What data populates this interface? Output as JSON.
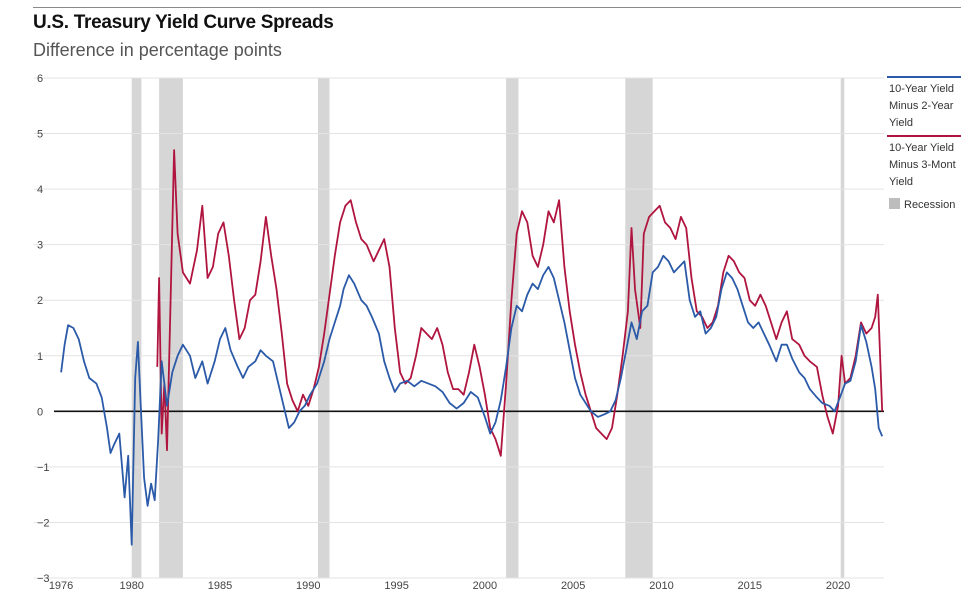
{
  "title": "U.S. Treasury Yield Curve Spreads",
  "subtitle": "Difference in percentage points",
  "legend": {
    "series1": [
      "10-Year Yield",
      "Minus 2-Year",
      "Yield"
    ],
    "series2": [
      "10-Year Yield",
      "Minus 3-Mont",
      "Yield"
    ],
    "recession": "Recession"
  },
  "colors": {
    "series1": "#2b5aa8",
    "series2": "#b0153f",
    "recession": "#d6d6d6",
    "grid": "#e3e3e3",
    "zero_line": "#111111"
  },
  "chart_data": {
    "type": "line",
    "title": "U.S. Treasury Yield Curve Spreads",
    "subtitle": "Difference in percentage points",
    "xlim": [
      1975.6,
      2022.6
    ],
    "ylim": [
      -3,
      6
    ],
    "x_ticks": [
      1976,
      1980,
      1985,
      1990,
      1995,
      2000,
      2005,
      2010,
      2015,
      2020
    ],
    "y_ticks": [
      6,
      5,
      4,
      3,
      2,
      1,
      0,
      -1,
      -2,
      -3
    ],
    "grid": "horizontal",
    "legend_position": "right",
    "recessions": [
      [
        1980.0,
        1980.55
      ],
      [
        1981.55,
        1982.9
      ],
      [
        1990.55,
        1991.2
      ],
      [
        2001.2,
        2001.9
      ],
      [
        2007.95,
        2009.5
      ],
      [
        2020.15,
        2020.35
      ]
    ],
    "series": [
      {
        "name": "10-Year Yield Minus 2-Year Yield",
        "points": [
          [
            1976.0,
            0.7
          ],
          [
            1976.2,
            1.2
          ],
          [
            1976.4,
            1.55
          ],
          [
            1976.7,
            1.5
          ],
          [
            1977.0,
            1.3
          ],
          [
            1977.3,
            0.9
          ],
          [
            1977.6,
            0.6
          ],
          [
            1978.0,
            0.5
          ],
          [
            1978.3,
            0.25
          ],
          [
            1978.6,
            -0.3
          ],
          [
            1978.8,
            -0.75
          ],
          [
            1979.0,
            -0.6
          ],
          [
            1979.3,
            -0.4
          ],
          [
            1979.6,
            -1.55
          ],
          [
            1979.8,
            -0.8
          ],
          [
            1980.0,
            -2.4
          ],
          [
            1980.2,
            0.6
          ],
          [
            1980.35,
            1.25
          ],
          [
            1980.5,
            0.2
          ],
          [
            1980.7,
            -1.2
          ],
          [
            1980.9,
            -1.7
          ],
          [
            1981.1,
            -1.3
          ],
          [
            1981.3,
            -1.6
          ],
          [
            1981.5,
            -0.5
          ],
          [
            1981.7,
            0.9
          ],
          [
            1982.0,
            0.1
          ],
          [
            1982.3,
            0.7
          ],
          [
            1982.6,
            1.0
          ],
          [
            1982.9,
            1.2
          ],
          [
            1983.3,
            1.0
          ],
          [
            1983.6,
            0.6
          ],
          [
            1984.0,
            0.9
          ],
          [
            1984.3,
            0.5
          ],
          [
            1984.7,
            0.9
          ],
          [
            1985.0,
            1.3
          ],
          [
            1985.3,
            1.5
          ],
          [
            1985.6,
            1.1
          ],
          [
            1986.0,
            0.8
          ],
          [
            1986.3,
            0.6
          ],
          [
            1986.6,
            0.8
          ],
          [
            1987.0,
            0.9
          ],
          [
            1987.3,
            1.1
          ],
          [
            1987.6,
            1.0
          ],
          [
            1988.0,
            0.9
          ],
          [
            1988.3,
            0.5
          ],
          [
            1988.6,
            0.1
          ],
          [
            1988.9,
            -0.3
          ],
          [
            1989.2,
            -0.2
          ],
          [
            1989.5,
            0.0
          ],
          [
            1989.8,
            0.1
          ],
          [
            1990.1,
            0.3
          ],
          [
            1990.5,
            0.5
          ],
          [
            1990.9,
            0.9
          ],
          [
            1991.2,
            1.3
          ],
          [
            1991.5,
            1.6
          ],
          [
            1991.8,
            1.9
          ],
          [
            1992.0,
            2.2
          ],
          [
            1992.3,
            2.45
          ],
          [
            1992.6,
            2.3
          ],
          [
            1993.0,
            2.0
          ],
          [
            1993.3,
            1.9
          ],
          [
            1993.6,
            1.7
          ],
          [
            1994.0,
            1.4
          ],
          [
            1994.3,
            0.9
          ],
          [
            1994.6,
            0.6
          ],
          [
            1994.9,
            0.35
          ],
          [
            1995.2,
            0.5
          ],
          [
            1995.6,
            0.55
          ],
          [
            1996.0,
            0.45
          ],
          [
            1996.4,
            0.55
          ],
          [
            1996.8,
            0.5
          ],
          [
            1997.2,
            0.45
          ],
          [
            1997.6,
            0.35
          ],
          [
            1998.0,
            0.15
          ],
          [
            1998.4,
            0.05
          ],
          [
            1998.8,
            0.15
          ],
          [
            1999.2,
            0.35
          ],
          [
            1999.6,
            0.25
          ],
          [
            2000.0,
            -0.1
          ],
          [
            2000.3,
            -0.4
          ],
          [
            2000.6,
            -0.2
          ],
          [
            2000.9,
            0.2
          ],
          [
            2001.2,
            0.8
          ],
          [
            2001.5,
            1.5
          ],
          [
            2001.8,
            1.9
          ],
          [
            2002.1,
            1.8
          ],
          [
            2002.4,
            2.1
          ],
          [
            2002.7,
            2.3
          ],
          [
            2003.0,
            2.2
          ],
          [
            2003.3,
            2.45
          ],
          [
            2003.6,
            2.6
          ],
          [
            2003.9,
            2.4
          ],
          [
            2004.2,
            2.0
          ],
          [
            2004.5,
            1.6
          ],
          [
            2004.8,
            1.1
          ],
          [
            2005.1,
            0.6
          ],
          [
            2005.4,
            0.3
          ],
          [
            2005.7,
            0.15
          ],
          [
            2006.0,
            0.0
          ],
          [
            2006.4,
            -0.1
          ],
          [
            2006.8,
            -0.05
          ],
          [
            2007.1,
            0.0
          ],
          [
            2007.4,
            0.2
          ],
          [
            2007.7,
            0.6
          ],
          [
            2008.0,
            1.1
          ],
          [
            2008.3,
            1.6
          ],
          [
            2008.6,
            1.3
          ],
          [
            2008.9,
            1.8
          ],
          [
            2009.2,
            1.9
          ],
          [
            2009.5,
            2.5
          ],
          [
            2009.8,
            2.6
          ],
          [
            2010.1,
            2.8
          ],
          [
            2010.4,
            2.7
          ],
          [
            2010.7,
            2.5
          ],
          [
            2011.0,
            2.6
          ],
          [
            2011.3,
            2.7
          ],
          [
            2011.6,
            2.0
          ],
          [
            2011.9,
            1.7
          ],
          [
            2012.2,
            1.8
          ],
          [
            2012.5,
            1.4
          ],
          [
            2012.8,
            1.5
          ],
          [
            2013.1,
            1.7
          ],
          [
            2013.4,
            2.2
          ],
          [
            2013.7,
            2.5
          ],
          [
            2014.0,
            2.4
          ],
          [
            2014.3,
            2.2
          ],
          [
            2014.6,
            1.9
          ],
          [
            2014.9,
            1.6
          ],
          [
            2015.2,
            1.5
          ],
          [
            2015.5,
            1.6
          ],
          [
            2015.8,
            1.4
          ],
          [
            2016.1,
            1.2
          ],
          [
            2016.5,
            0.9
          ],
          [
            2016.8,
            1.2
          ],
          [
            2017.1,
            1.2
          ],
          [
            2017.4,
            0.95
          ],
          [
            2017.8,
            0.7
          ],
          [
            2018.1,
            0.6
          ],
          [
            2018.4,
            0.4
          ],
          [
            2018.8,
            0.25
          ],
          [
            2019.1,
            0.15
          ],
          [
            2019.5,
            0.1
          ],
          [
            2019.8,
            0.0
          ],
          [
            2020.1,
            0.25
          ],
          [
            2020.4,
            0.5
          ],
          [
            2020.7,
            0.55
          ],
          [
            2021.0,
            0.9
          ],
          [
            2021.3,
            1.55
          ],
          [
            2021.6,
            1.25
          ],
          [
            2021.9,
            0.8
          ],
          [
            2022.1,
            0.4
          ],
          [
            2022.3,
            -0.3
          ],
          [
            2022.5,
            -0.45
          ]
        ]
      },
      {
        "name": "10-Year Yield Minus 3-Month Yield",
        "points": [
          [
            1981.45,
            0.8
          ],
          [
            1981.55,
            2.4
          ],
          [
            1981.7,
            -0.4
          ],
          [
            1981.85,
            0.5
          ],
          [
            1982.0,
            -0.7
          ],
          [
            1982.2,
            2.0
          ],
          [
            1982.4,
            4.7
          ],
          [
            1982.6,
            3.2
          ],
          [
            1982.9,
            2.5
          ],
          [
            1983.3,
            2.3
          ],
          [
            1983.7,
            2.9
          ],
          [
            1984.0,
            3.7
          ],
          [
            1984.3,
            2.4
          ],
          [
            1984.6,
            2.6
          ],
          [
            1984.9,
            3.2
          ],
          [
            1985.2,
            3.4
          ],
          [
            1985.5,
            2.8
          ],
          [
            1985.8,
            2.0
          ],
          [
            1986.1,
            1.3
          ],
          [
            1986.4,
            1.5
          ],
          [
            1986.7,
            2.0
          ],
          [
            1987.0,
            2.1
          ],
          [
            1987.3,
            2.7
          ],
          [
            1987.6,
            3.5
          ],
          [
            1987.9,
            2.8
          ],
          [
            1988.2,
            2.2
          ],
          [
            1988.5,
            1.4
          ],
          [
            1988.8,
            0.5
          ],
          [
            1989.1,
            0.2
          ],
          [
            1989.4,
            0.0
          ],
          [
            1989.7,
            0.3
          ],
          [
            1990.0,
            0.1
          ],
          [
            1990.3,
            0.4
          ],
          [
            1990.6,
            0.8
          ],
          [
            1990.9,
            1.4
          ],
          [
            1991.2,
            2.1
          ],
          [
            1991.5,
            2.8
          ],
          [
            1991.8,
            3.4
          ],
          [
            1992.1,
            3.7
          ],
          [
            1992.4,
            3.8
          ],
          [
            1992.7,
            3.4
          ],
          [
            1993.0,
            3.1
          ],
          [
            1993.3,
            3.0
          ],
          [
            1993.7,
            2.7
          ],
          [
            1994.0,
            2.9
          ],
          [
            1994.3,
            3.1
          ],
          [
            1994.6,
            2.6
          ],
          [
            1994.9,
            1.5
          ],
          [
            1995.2,
            0.7
          ],
          [
            1995.5,
            0.5
          ],
          [
            1995.8,
            0.6
          ],
          [
            1996.1,
            1.0
          ],
          [
            1996.4,
            1.5
          ],
          [
            1996.7,
            1.4
          ],
          [
            1997.0,
            1.3
          ],
          [
            1997.3,
            1.5
          ],
          [
            1997.6,
            1.2
          ],
          [
            1997.9,
            0.7
          ],
          [
            1998.2,
            0.4
          ],
          [
            1998.5,
            0.4
          ],
          [
            1998.8,
            0.3
          ],
          [
            1999.1,
            0.7
          ],
          [
            1999.4,
            1.2
          ],
          [
            1999.7,
            0.8
          ],
          [
            2000.0,
            0.3
          ],
          [
            2000.3,
            -0.3
          ],
          [
            2000.6,
            -0.5
          ],
          [
            2000.9,
            -0.8
          ],
          [
            2001.2,
            0.5
          ],
          [
            2001.5,
            2.0
          ],
          [
            2001.8,
            3.2
          ],
          [
            2002.1,
            3.6
          ],
          [
            2002.4,
            3.4
          ],
          [
            2002.7,
            2.8
          ],
          [
            2003.0,
            2.6
          ],
          [
            2003.3,
            3.0
          ],
          [
            2003.6,
            3.6
          ],
          [
            2003.9,
            3.4
          ],
          [
            2004.2,
            3.8
          ],
          [
            2004.5,
            2.6
          ],
          [
            2004.8,
            1.8
          ],
          [
            2005.1,
            1.2
          ],
          [
            2005.4,
            0.7
          ],
          [
            2005.7,
            0.3
          ],
          [
            2006.0,
            0.0
          ],
          [
            2006.3,
            -0.3
          ],
          [
            2006.6,
            -0.4
          ],
          [
            2006.9,
            -0.5
          ],
          [
            2007.2,
            -0.3
          ],
          [
            2007.5,
            0.3
          ],
          [
            2007.8,
            1.0
          ],
          [
            2008.1,
            1.8
          ],
          [
            2008.3,
            3.3
          ],
          [
            2008.5,
            2.2
          ],
          [
            2008.8,
            1.5
          ],
          [
            2009.0,
            3.2
          ],
          [
            2009.3,
            3.5
          ],
          [
            2009.6,
            3.6
          ],
          [
            2009.9,
            3.7
          ],
          [
            2010.2,
            3.4
          ],
          [
            2010.5,
            3.3
          ],
          [
            2010.8,
            3.1
          ],
          [
            2011.1,
            3.5
          ],
          [
            2011.4,
            3.3
          ],
          [
            2011.7,
            2.4
          ],
          [
            2012.0,
            1.8
          ],
          [
            2012.3,
            1.7
          ],
          [
            2012.6,
            1.5
          ],
          [
            2012.9,
            1.6
          ],
          [
            2013.2,
            1.9
          ],
          [
            2013.5,
            2.5
          ],
          [
            2013.8,
            2.8
          ],
          [
            2014.1,
            2.7
          ],
          [
            2014.4,
            2.5
          ],
          [
            2014.7,
            2.4
          ],
          [
            2015.0,
            2.0
          ],
          [
            2015.3,
            1.9
          ],
          [
            2015.6,
            2.1
          ],
          [
            2015.9,
            1.9
          ],
          [
            2016.2,
            1.6
          ],
          [
            2016.5,
            1.3
          ],
          [
            2016.8,
            1.6
          ],
          [
            2017.1,
            1.8
          ],
          [
            2017.4,
            1.3
          ],
          [
            2017.8,
            1.2
          ],
          [
            2018.1,
            1.0
          ],
          [
            2018.4,
            0.9
          ],
          [
            2018.8,
            0.8
          ],
          [
            2019.1,
            0.3
          ],
          [
            2019.4,
            -0.1
          ],
          [
            2019.7,
            -0.4
          ],
          [
            2020.0,
            0.1
          ],
          [
            2020.2,
            1.0
          ],
          [
            2020.4,
            0.5
          ],
          [
            2020.7,
            0.6
          ],
          [
            2021.0,
            1.0
          ],
          [
            2021.3,
            1.6
          ],
          [
            2021.6,
            1.4
          ],
          [
            2021.9,
            1.5
          ],
          [
            2022.1,
            1.7
          ],
          [
            2022.25,
            2.1
          ],
          [
            2022.4,
            0.8
          ],
          [
            2022.5,
            0.0
          ]
        ]
      }
    ]
  }
}
